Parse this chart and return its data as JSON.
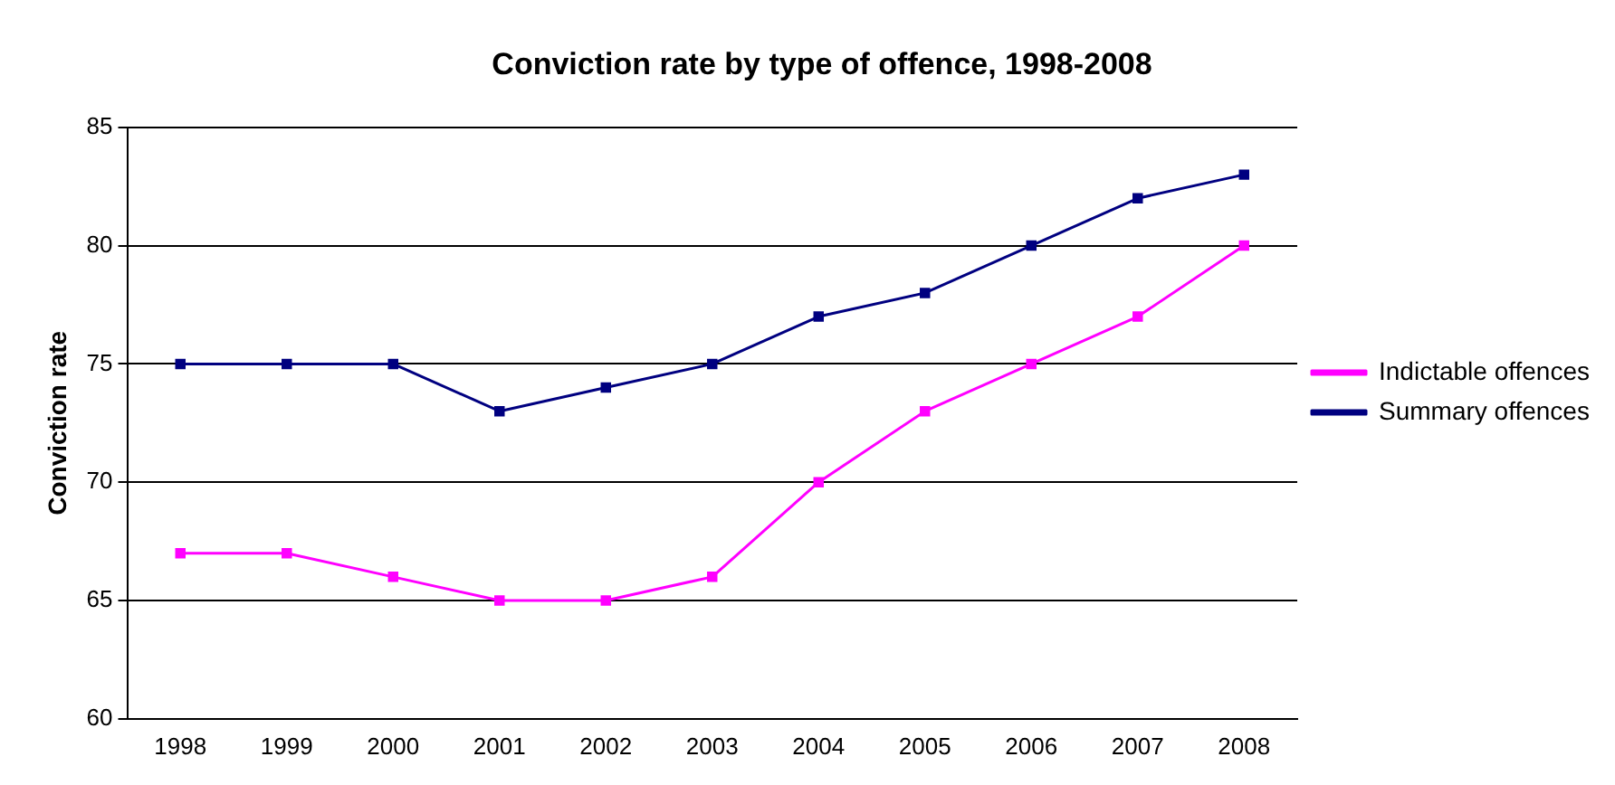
{
  "chart_data": {
    "type": "line",
    "title": "Conviction rate by type of offence, 1998-2008",
    "ylabel": "Conviction rate",
    "categories": [
      "1998",
      "1999",
      "2000",
      "2001",
      "2002",
      "2003",
      "2004",
      "2005",
      "2006",
      "2007",
      "2008"
    ],
    "series": [
      {
        "name": "Indictable offences",
        "color": "#ff00ff",
        "values": [
          67,
          67,
          66,
          65,
          65,
          66,
          70,
          73,
          75,
          77,
          80
        ]
      },
      {
        "name": "Summary offences",
        "color": "#000080",
        "values": [
          75,
          75,
          75,
          73,
          74,
          75,
          77,
          78,
          80,
          82,
          83
        ]
      }
    ],
    "ylim": [
      60,
      85
    ],
    "yticks": [
      60,
      65,
      70,
      75,
      80,
      85
    ],
    "grid": "y",
    "legend": "right",
    "marker": "square",
    "line_style": "solid"
  }
}
